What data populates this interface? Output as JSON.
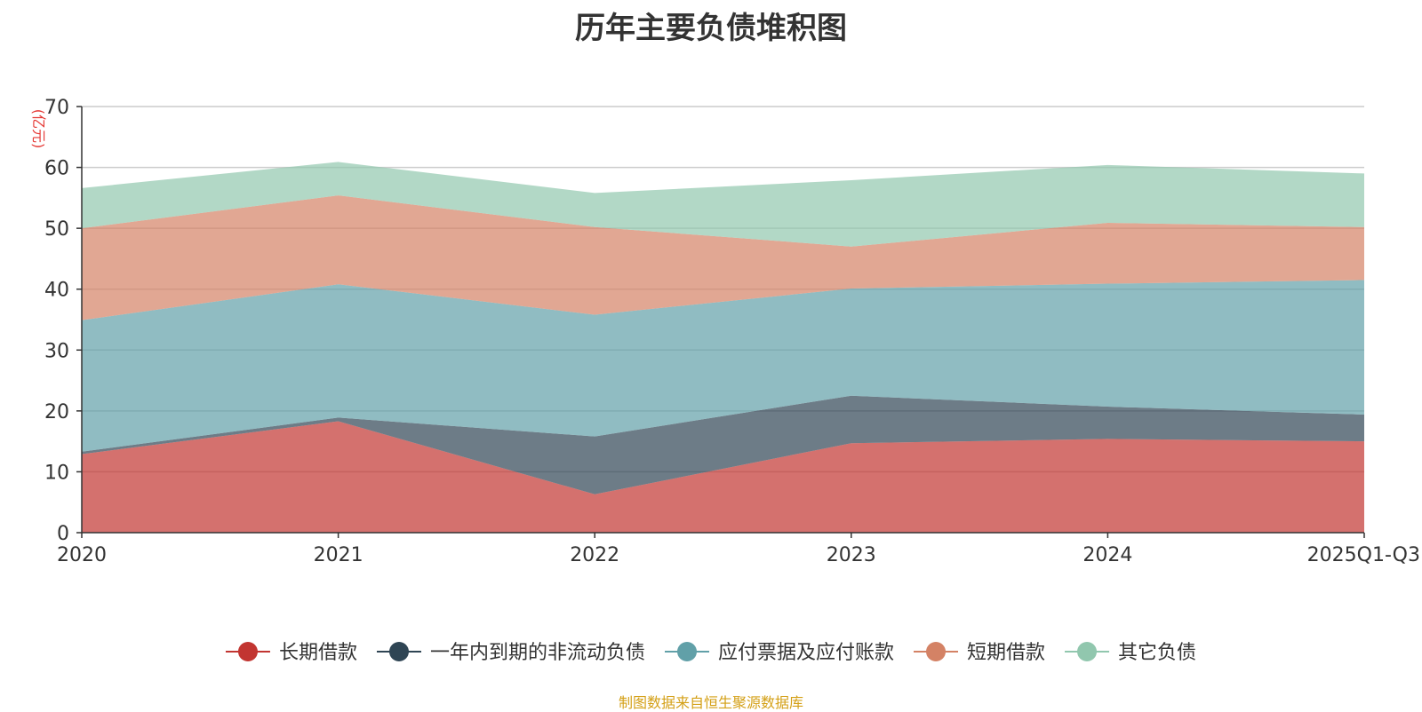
{
  "chart_data": {
    "type": "area",
    "title": "历年主要负债堆积图",
    "ylabel": "(亿元)",
    "ylim": [
      0,
      70
    ],
    "yticks": [
      0,
      10,
      20,
      30,
      40,
      50,
      60,
      70
    ],
    "categories": [
      "2020",
      "2021",
      "2022",
      "2023",
      "2024",
      "2025Q1-Q3"
    ],
    "stacked": true,
    "grid": true,
    "legend_position": "bottom",
    "series": [
      {
        "name": "长期借款",
        "color": "#c23531",
        "values": [
          12.9,
          18.3,
          6.3,
          14.7,
          15.4,
          15.0
        ]
      },
      {
        "name": "一年内到期的非流动负债",
        "color": "#2f4554",
        "values": [
          0.4,
          0.6,
          9.5,
          7.8,
          5.3,
          4.4
        ]
      },
      {
        "name": "应付票据及应付账款",
        "color": "#61a0a8",
        "values": [
          21.6,
          21.9,
          20.0,
          17.6,
          20.2,
          22.1
        ]
      },
      {
        "name": "短期借款",
        "color": "#d48265",
        "values": [
          15.1,
          14.6,
          14.4,
          6.9,
          10.0,
          8.7
        ]
      },
      {
        "name": "其它负债",
        "color": "#91c7ae",
        "values": [
          6.6,
          5.5,
          5.6,
          10.9,
          9.5,
          8.8
        ]
      }
    ]
  },
  "source_text": "制图数据来自恒生聚源数据库"
}
